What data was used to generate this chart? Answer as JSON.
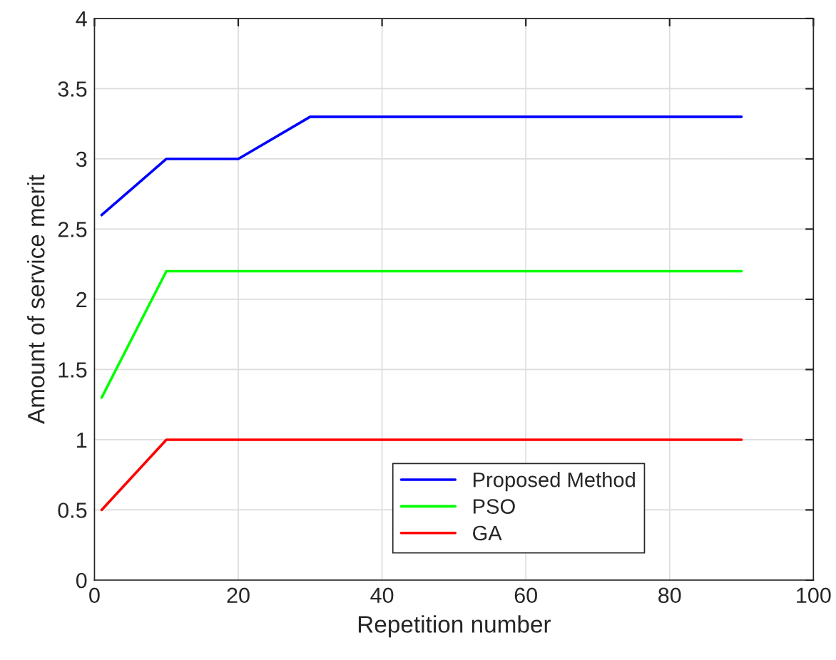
{
  "chart_data": {
    "type": "line",
    "xlabel": "Repetition number",
    "ylabel": "Amount of service merit",
    "xlim": [
      0,
      100
    ],
    "xticks": [
      0,
      20,
      40,
      60,
      80,
      100
    ],
    "ylim": [
      0,
      4
    ],
    "yticks": [
      0,
      0.5,
      1,
      1.5,
      2,
      2.5,
      3,
      3.5,
      4
    ],
    "grid": true,
    "legend": "bottom",
    "marker": "none",
    "line_style": "solid",
    "series": [
      {
        "name": "Proposed Method",
        "color": "#0000ff",
        "x": [
          1,
          10,
          20,
          30,
          90
        ],
        "values": [
          2.6,
          3,
          3,
          3.3,
          3.3
        ]
      },
      {
        "name": "PSO",
        "color": "#00ff00",
        "x": [
          1,
          10,
          90
        ],
        "values": [
          1.3,
          2.2,
          2.2
        ]
      },
      {
        "name": "GA",
        "color": "#ff0000",
        "x": [
          1,
          10,
          90
        ],
        "values": [
          0.5,
          1,
          1
        ]
      }
    ]
  }
}
